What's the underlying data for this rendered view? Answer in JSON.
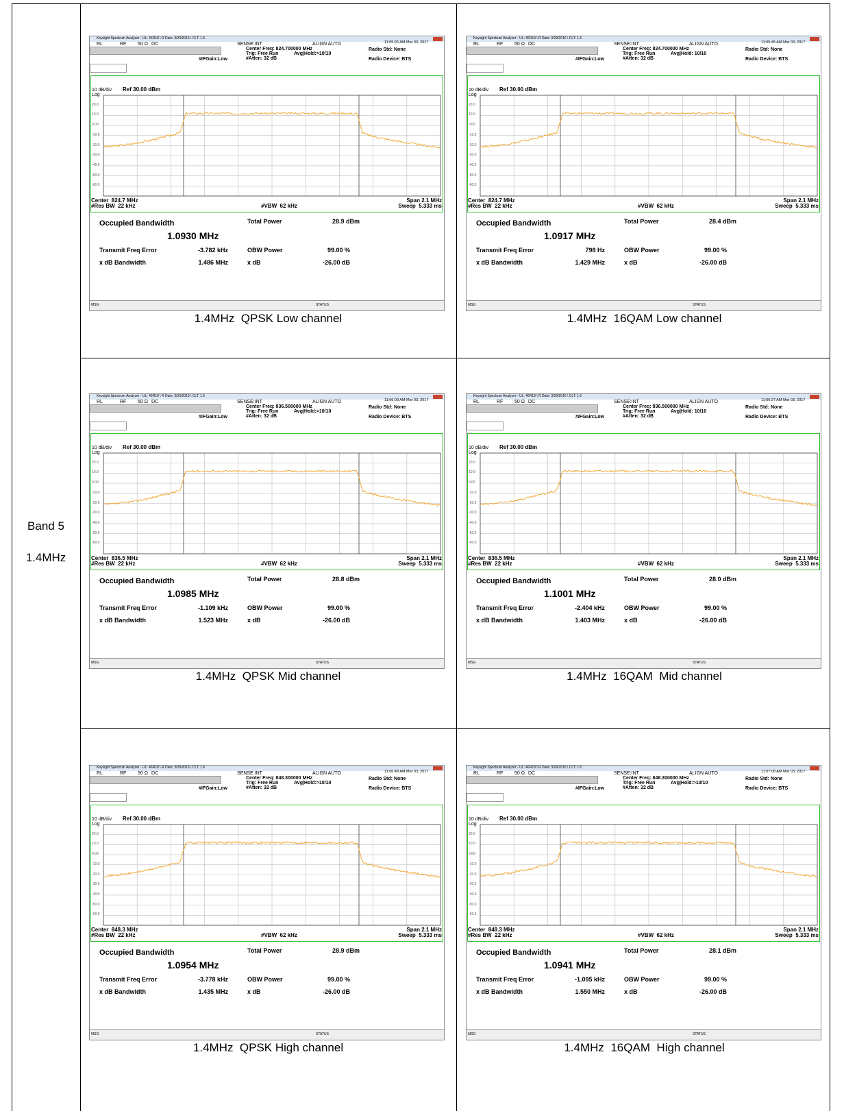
{
  "band": {
    "name": "Band 5",
    "bandwidth": "1.4MHz"
  },
  "common": {
    "title_bar": "Keysight Spectrum Analyzer - UL: 46R18 \\ R Date: 3/29/2016 \\ CLT: 1.6",
    "rl": "RL",
    "rf": "RF",
    "impedance": "50 Ω",
    "coupling": "DC",
    "sense": "SENSE:INT",
    "align": "ALIGN AUTO",
    "trig": "Trig: Free Run",
    "ifgain": "#IFGain:Low",
    "atten": "#Atten: 32 dB",
    "radio_std": "Radio Std: None",
    "radio_device": "Radio Device: BTS",
    "scale": "10 dB/div",
    "ref": "Ref 30.00 dBm",
    "log": "Log",
    "y_labels": [
      "20.0",
      "10.0",
      "0.00",
      "-10.0",
      "-20.0",
      "-30.0",
      "-40.0",
      "-50.0",
      "-60.0"
    ],
    "res_bw": "#Res BW  22 kHz",
    "vbw": "#VBW  62 kHz",
    "span": "Span 2.1 MHz",
    "sweep": "Sweep  5.333 ms",
    "occupied_bandwidth": "Occupied Bandwidth",
    "total_power": "Total Power",
    "transmit_freq_error": "Transmit Freq Error",
    "obw_power": "OBW Power",
    "obw_power_value": "99.00 %",
    "xdb_bandwidth": "x dB Bandwidth",
    "xdb": "x dB",
    "xdb_value": "-26.00 dB",
    "msg": "MSG",
    "status": "STATUS"
  },
  "panels": [
    {
      "timestamp": "11:05:26 AM Mar 03, 2017",
      "center_freq": "Center Freq: 824.700000 MHz",
      "avg_hold": "Avg|Hold:>10/10",
      "center": "Center  824.7 MHz",
      "obw": "1.0930 MHz",
      "total_power": "28.9 dBm",
      "freq_error": "-3.782 kHz",
      "xdb_bw": "1.486 MHz",
      "caption": "1.4MHz  QPSK Low channel"
    },
    {
      "timestamp": "11:05:45 AM Mar 03, 2017",
      "center_freq": "Center Freq: 824.700000 MHz",
      "avg_hold": "Avg|Hold: 10/10",
      "center": "Center  824.7 MHz",
      "obw": "1.0917 MHz",
      "total_power": "28.4 dBm",
      "freq_error": "798 Hz",
      "xdb_bw": "1.429 MHz",
      "caption": "1.4MHz  16QAM Low channel"
    },
    {
      "timestamp": "11:06:09 AM Mar 03, 2017",
      "center_freq": "Center Freq: 836.500000 MHz",
      "avg_hold": "Avg|Hold:>10/10",
      "center": "Center  836.5 MHz",
      "obw": "1.0985 MHz",
      "total_power": "28.8 dBm",
      "freq_error": "-1.109 kHz",
      "xdb_bw": "1.523 MHz",
      "caption": "1.4MHz  QPSK Mid channel"
    },
    {
      "timestamp": "11:06:27 AM Mar 03, 2017",
      "center_freq": "Center Freq: 836.500000 MHz",
      "avg_hold": "Avg|Hold: 10/10",
      "center": "Center  836.5 MHz",
      "obw": "1.1001 MHz",
      "total_power": "28.0 dBm",
      "freq_error": "-2.404 kHz",
      "xdb_bw": "1.403 MHz",
      "caption": "1.4MHz  16QAM  Mid channel"
    },
    {
      "timestamp": "11:06:48 AM Mar 03, 2017",
      "center_freq": "Center Freq: 848.300000 MHz",
      "avg_hold": "Avg|Hold:>10/10",
      "center": "Center  848.3 MHz",
      "obw": "1.0954 MHz",
      "total_power": "28.9 dBm",
      "freq_error": "-3.778 kHz",
      "xdb_bw": "1.435 MHz",
      "caption": "1.4MHz  QPSK High channel"
    },
    {
      "timestamp": "11:07:08 AM Mar 03, 2017",
      "center_freq": "Center Freq: 848.300000 MHz",
      "avg_hold": "Avg|Hold:>10/10",
      "center": "Center  848.3 MHz",
      "obw": "1.0941 MHz",
      "total_power": "28.1 dBm",
      "freq_error": "-1.095 kHz",
      "xdb_bw": "1.550 MHz",
      "caption": "1.4MHz  16QAM  High channel"
    }
  ]
}
